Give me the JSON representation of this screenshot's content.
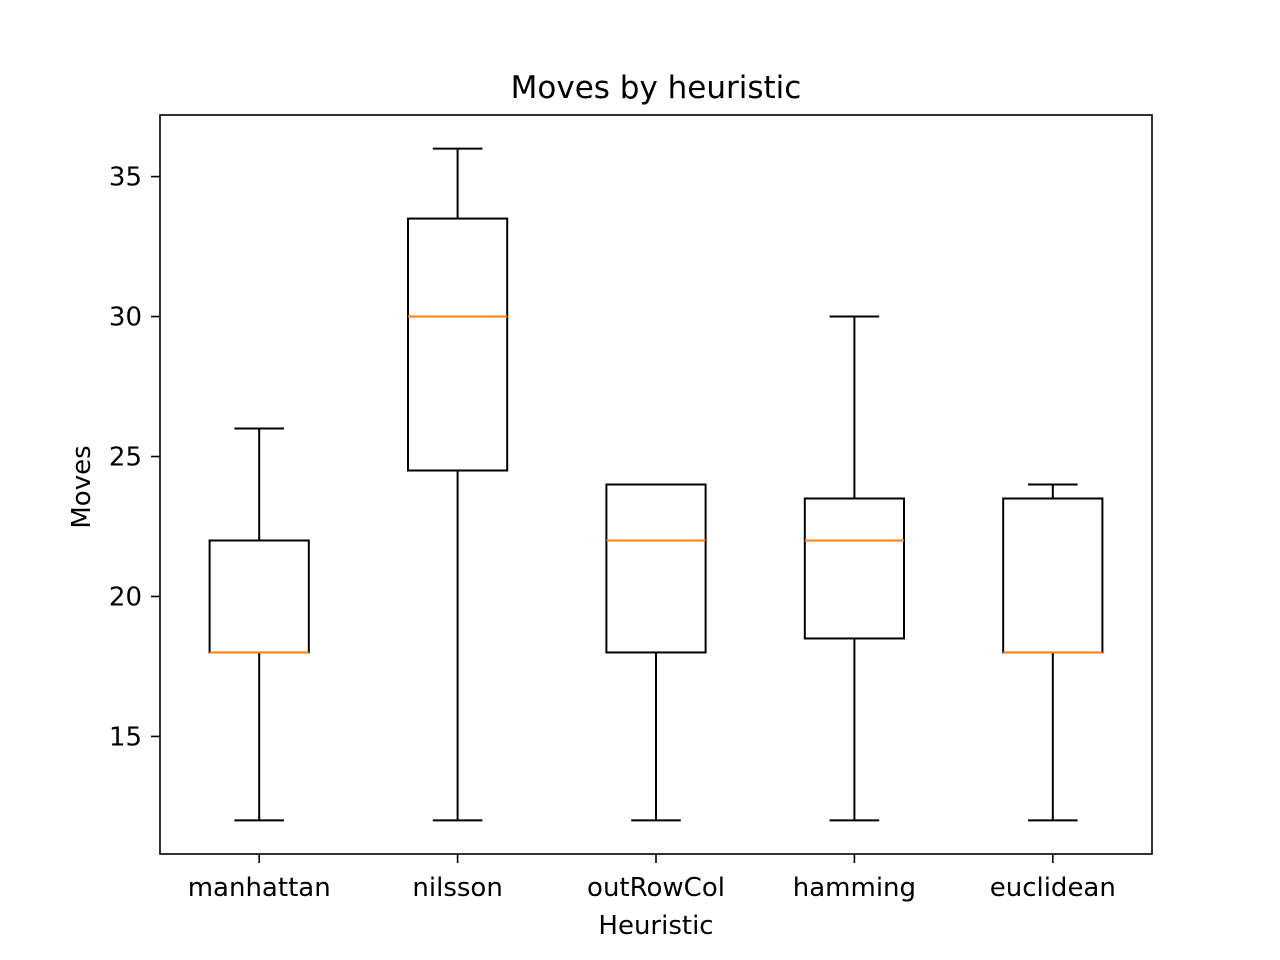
{
  "chart_data": {
    "type": "box",
    "title": "Moves by heuristic",
    "xlabel": "Heuristic",
    "ylabel": "Moves",
    "ylim": [
      10.8,
      37.2
    ],
    "yticks": [
      15,
      20,
      25,
      30,
      35
    ],
    "grid": false,
    "categories": [
      "manhattan",
      "nilsson",
      "outRowCol",
      "hamming",
      "euclidean"
    ],
    "boxes": [
      {
        "category": "manhattan",
        "whisker_low": 12,
        "q1": 18,
        "median": 18,
        "q3": 22,
        "whisker_high": 26
      },
      {
        "category": "nilsson",
        "whisker_low": 12,
        "q1": 24.5,
        "median": 30,
        "q3": 33.5,
        "whisker_high": 36
      },
      {
        "category": "outRowCol",
        "whisker_low": 12,
        "q1": 18,
        "median": 22,
        "q3": 24,
        "whisker_high": 24
      },
      {
        "category": "hamming",
        "whisker_low": 12,
        "q1": 18.5,
        "median": 22,
        "q3": 23.5,
        "whisker_high": 30
      },
      {
        "category": "euclidean",
        "whisker_low": 12,
        "q1": 18,
        "median": 18,
        "q3": 23.5,
        "whisker_high": 24
      }
    ],
    "colors": {
      "box": "#000000",
      "median": "#ff7f0e"
    }
  }
}
